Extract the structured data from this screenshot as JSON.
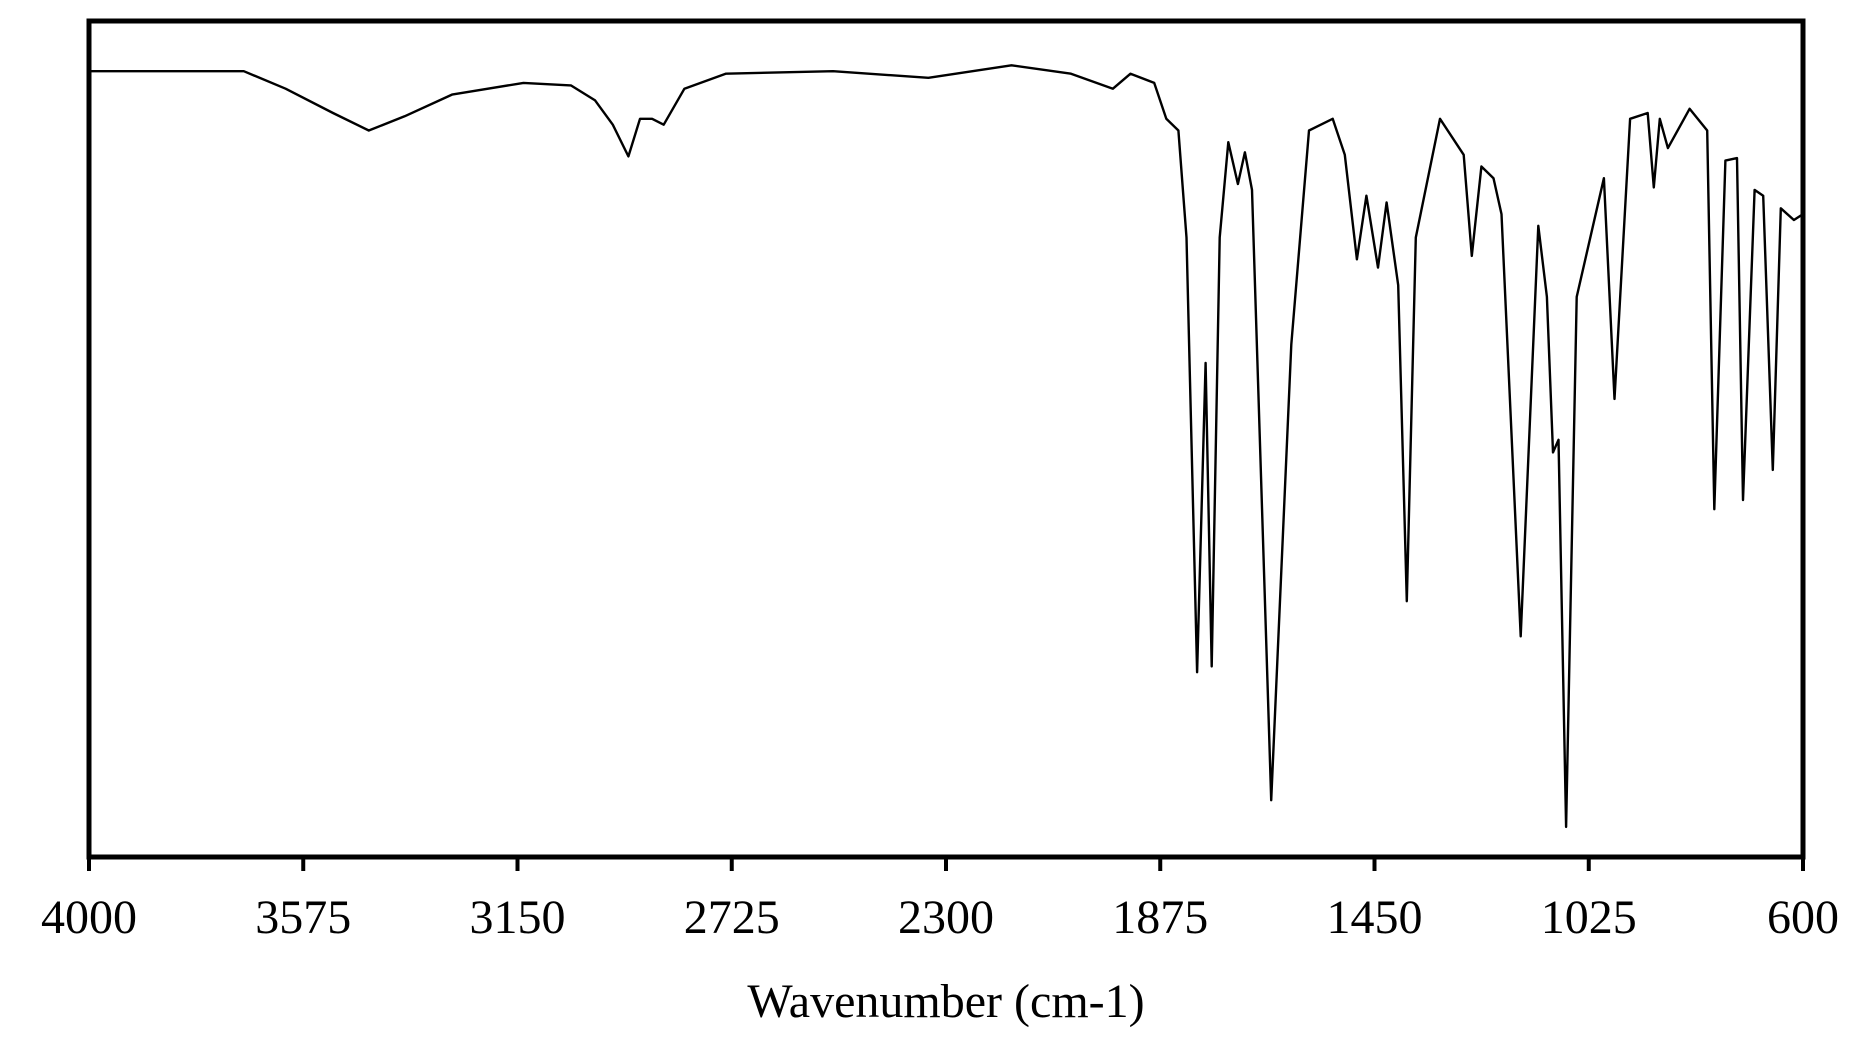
{
  "chart_data": {
    "type": "line",
    "xlabel": "Wavenumber (cm-1)",
    "x": [
      4000,
      3693,
      3610,
      3516,
      3445,
      3374,
      3280,
      3138,
      3044,
      2996,
      2961,
      2930,
      2907,
      2883,
      2860,
      2819,
      2737,
      2524,
      2335,
      2170,
      2052,
      1969,
      1934,
      1887,
      1863,
      1839,
      1823,
      1802,
      1785,
      1773,
      1757,
      1740,
      1721,
      1707,
      1693,
      1655,
      1615,
      1580,
      1533,
      1509,
      1485,
      1466,
      1443,
      1426,
      1403,
      1386,
      1368,
      1320,
      1273,
      1257,
      1238,
      1214,
      1198,
      1160,
      1125,
      1108,
      1096,
      1085,
      1070,
      1049,
      995,
      974,
      943,
      908,
      896,
      884,
      868,
      825,
      790,
      776,
      754,
      731,
      719,
      696,
      679,
      660,
      644,
      618,
      600
    ],
    "values": [
      94,
      94,
      91.9,
      89,
      86.9,
      88.6,
      91.2,
      92.6,
      92.3,
      90.5,
      87.6,
      83.8,
      88.3,
      88.3,
      87.6,
      91.9,
      93.7,
      94,
      93.2,
      94.7,
      93.7,
      91.9,
      93.7,
      92.6,
      88.3,
      86.9,
      74.1,
      22.1,
      59.1,
      22.8,
      74.1,
      85.5,
      80.5,
      84.3,
      79.8,
      6.8,
      61.3,
      86.9,
      88.3,
      84,
      71.5,
      79.1,
      70.5,
      78.3,
      68.4,
      30.6,
      74.1,
      88.3,
      84,
      71.9,
      82.6,
      81.2,
      76.9,
      26.4,
      75.5,
      67,
      48.4,
      49.9,
      3.6,
      67,
      81.2,
      54.8,
      88.3,
      89,
      80.1,
      88.3,
      84.8,
      89.5,
      86.9,
      41.6,
      83.3,
      83.6,
      42.7,
      79.8,
      79.1,
      46.3,
      77.6,
      76.2,
      76.9
    ],
    "color": "#000000",
    "xlim": [
      4000,
      600
    ],
    "ylim": [
      0,
      100
    ],
    "xticks": [
      4000,
      3575,
      3150,
      2725,
      2300,
      1875,
      1450,
      1025,
      600
    ]
  }
}
